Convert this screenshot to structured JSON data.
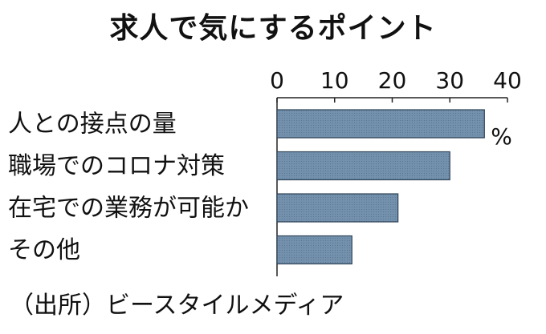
{
  "chart_data": {
    "type": "bar",
    "orientation": "horizontal",
    "title": "求人で気にするポイント",
    "categories": [
      "人との接点の量",
      "職場でのコロナ対策",
      "在宅での業務が可能か",
      "その他"
    ],
    "values": [
      36,
      30,
      21,
      13
    ],
    "unit": "%",
    "xlim": [
      0,
      40
    ],
    "xticks": [
      "0",
      "10",
      "20",
      "30",
      "40"
    ],
    "axis_position": "top",
    "grid": false,
    "legend": "none",
    "bar_color": "#6f8eab",
    "source": "（出所）ビースタイルメディア"
  }
}
